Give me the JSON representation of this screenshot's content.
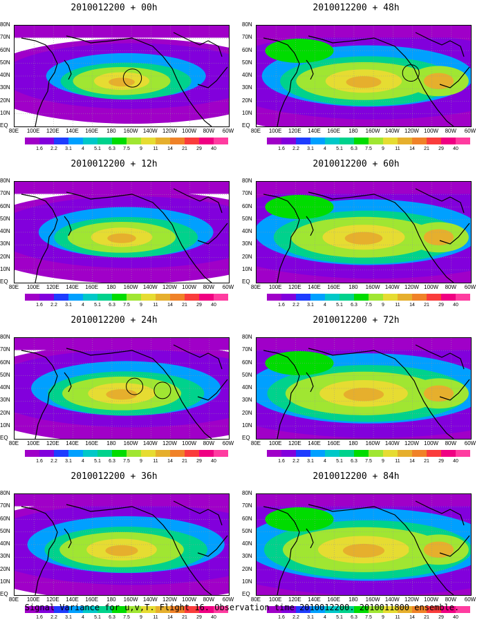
{
  "panels": [
    {
      "title": "2010012200 + 00h",
      "col": 0,
      "row": 0,
      "spread": 0.35,
      "circles": [
        [
          0.55,
          0.52,
          0.22
        ]
      ]
    },
    {
      "title": "2010012200 + 12h",
      "col": 0,
      "row": 1,
      "spread": 0.45,
      "circles": []
    },
    {
      "title": "2010012200 + 24h",
      "col": 0,
      "row": 2,
      "spread": 0.55,
      "circles": [
        [
          0.56,
          0.48,
          0.2
        ],
        [
          0.69,
          0.52,
          0.2
        ]
      ]
    },
    {
      "title": "2010012200 + 36h",
      "col": 0,
      "row": 3,
      "spread": 0.6,
      "circles": []
    },
    {
      "title": "2010012200 + 48h",
      "col": 1,
      "row": 0,
      "spread": 0.7,
      "circles": [
        [
          0.72,
          0.47,
          0.2
        ]
      ]
    },
    {
      "title": "2010012200 + 60h",
      "col": 1,
      "row": 1,
      "spread": 0.8,
      "circles": []
    },
    {
      "title": "2010012200 + 72h",
      "col": 1,
      "row": 2,
      "spread": 0.9,
      "circles": []
    },
    {
      "title": "2010012200 + 84h",
      "col": 1,
      "row": 3,
      "spread": 0.95,
      "circles": []
    }
  ],
  "lat_labels": [
    "80N",
    "70N",
    "60N",
    "50N",
    "40N",
    "30N",
    "20N",
    "10N",
    "EQ"
  ],
  "lon_labels": [
    "80E",
    "100E",
    "120E",
    "140E",
    "160E",
    "180",
    "160W",
    "140W",
    "120W",
    "100W",
    "80W",
    "60W"
  ],
  "colorbar": {
    "levels": [
      "1.6",
      "2.2",
      "3.1",
      "4",
      "5.1",
      "6.3",
      "7.5",
      "9",
      "11",
      "14",
      "21",
      "29",
      "40"
    ],
    "colors": [
      "#a000c8",
      "#8200dc",
      "#1e3cff",
      "#00a0ff",
      "#00c8c8",
      "#00d28c",
      "#00dc00",
      "#a0e632",
      "#e6dc32",
      "#e6af2d",
      "#f08228",
      "#fa3c3c",
      "#f00082",
      "#ff3ca0"
    ]
  },
  "caption": "Signal Variance for u,v,T. Flight 16. Observation time 2010012200. 2010011800 ensemble."
}
